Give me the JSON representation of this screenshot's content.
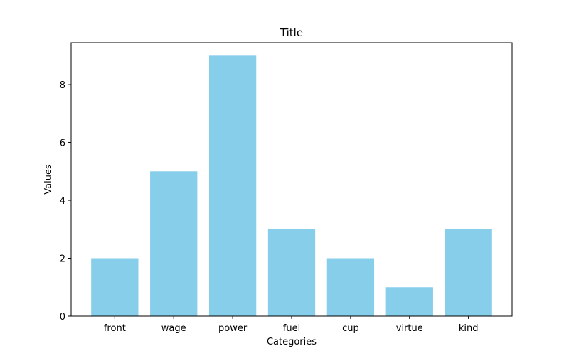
{
  "chart_data": {
    "type": "bar",
    "title": "Title",
    "xlabel": "Categories",
    "ylabel": "Values",
    "categories": [
      "front",
      "wage",
      "power",
      "fuel",
      "cup",
      "virtue",
      "kind"
    ],
    "values": [
      2,
      5,
      9,
      3,
      2,
      1,
      3
    ],
    "ylim": [
      0,
      9.45
    ],
    "yticks": [
      0,
      2,
      4,
      6,
      8
    ],
    "grid": false,
    "bar_color": "#87CEEB",
    "axis_color": "#000000"
  }
}
